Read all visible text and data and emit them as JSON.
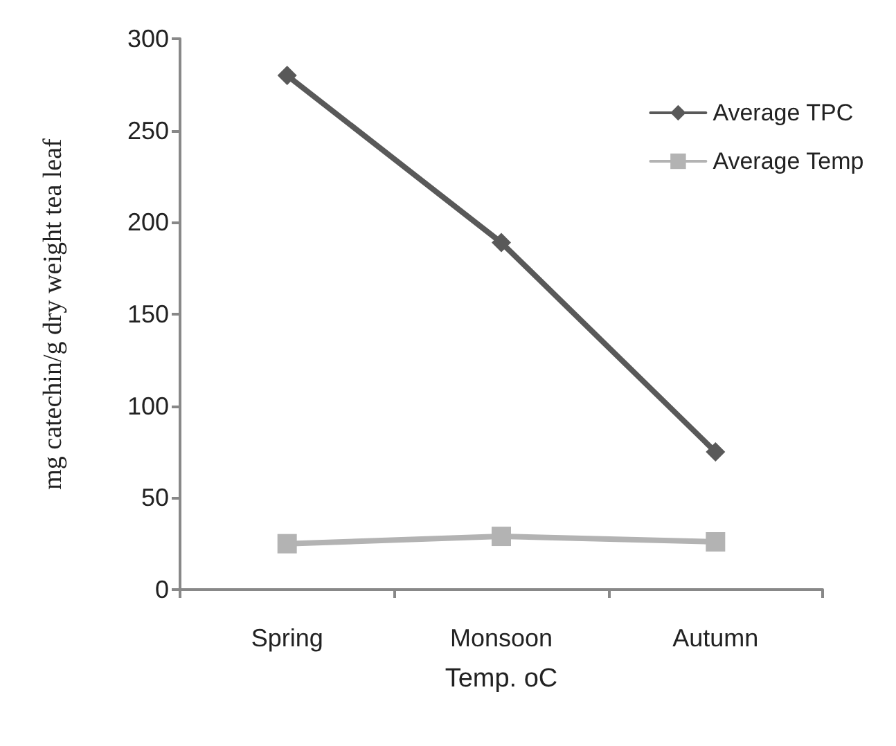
{
  "chart_data": {
    "type": "line",
    "xlabel": "Temp. oC",
    "ylabel": "mg catechin/g dry weight tea leaf",
    "categories": [
      "Spring",
      "Monsoon",
      "Autumn"
    ],
    "series": [
      {
        "name": "Average TPC",
        "color": "#595959",
        "marker": "diamond",
        "values": [
          280,
          189,
          75
        ]
      },
      {
        "name": "Average Temp",
        "color": "#b3b3b3",
        "marker": "square",
        "values": [
          25,
          29,
          26
        ]
      }
    ],
    "ylim": [
      0,
      300
    ],
    "yticks": [
      0,
      50,
      100,
      150,
      200,
      250,
      300
    ],
    "grid": false,
    "legend": "top right",
    "line_style": "solid"
  }
}
